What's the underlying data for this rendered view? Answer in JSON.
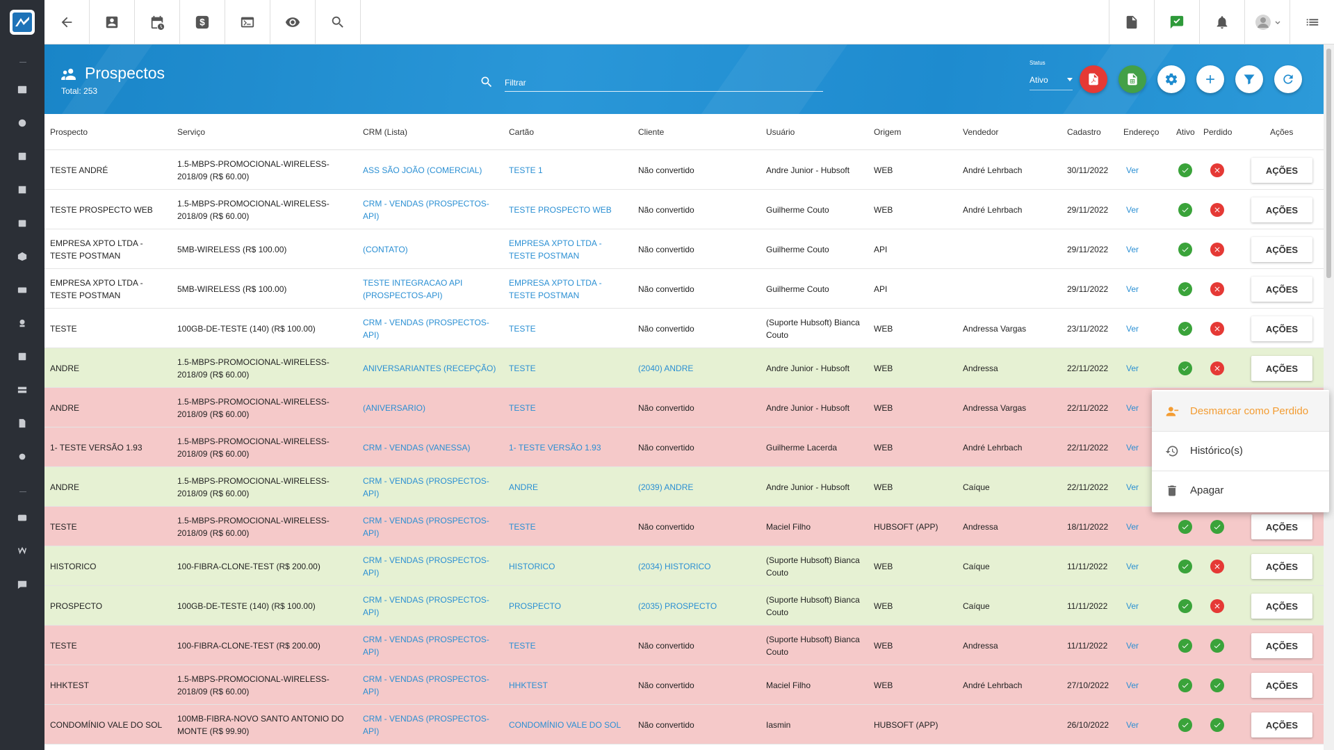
{
  "colors": {
    "header_blue": "#1e8bcf",
    "link": "#2a8fd3",
    "row_green": "#e6f1d3",
    "row_red": "#f5c9c9",
    "ok_green": "#3aa33a",
    "error_red": "#e53935",
    "menu_orange": "#f39c32",
    "pdf_red": "#e53935",
    "excel_green": "#43a047"
  },
  "topbar": {
    "left_icons": [
      "back-arrow-icon",
      "contact-card-icon",
      "calendar-clock-icon",
      "dollar-icon",
      "terminal-icon",
      "eye-icon",
      "search-icon"
    ],
    "right_icons": [
      "pdf-document-icon",
      "chat-check-icon",
      "bell-icon",
      "user-avatar-icon",
      "menu-list-icon"
    ]
  },
  "header": {
    "title": "Prospectos",
    "total": "Total: 253",
    "filter_placeholder": "Filtrar",
    "status_label": "Status",
    "status_value": "Ativo",
    "action_icons": [
      "pdf-export-icon",
      "excel-export-icon",
      "settings-icon",
      "add-icon",
      "filter-icon",
      "refresh-icon"
    ]
  },
  "table": {
    "columns": [
      "Prospecto",
      "Serviço",
      "CRM (Lista)",
      "Cartão",
      "Cliente",
      "Usuário",
      "Origem",
      "Vendedor",
      "Cadastro",
      "Endereço",
      "Ativo",
      "Perdido",
      "Ações"
    ],
    "rows": [
      {
        "prospecto": "TESTE ANDRÉ",
        "servico": "1.5-MBPS-PROMOCIONAL-WIRELESS-2018/09 (R$ 60.00)",
        "crm": "ASS SÃO JOÃO (COMERCIAL)",
        "cartao": "TESTE 1",
        "cliente": "Não convertido",
        "cliente_link": false,
        "usuario": "Andre Junior - Hubsoft",
        "origem": "WEB",
        "vendedor": "André Lehrbach",
        "cadastro": "30/11/2022",
        "endereco": "Ver",
        "ativo": true,
        "perdido": false,
        "acoes": "AÇÕES",
        "color": "white"
      },
      {
        "prospecto": "TESTE PROSPECTO WEB",
        "servico": "1.5-MBPS-PROMOCIONAL-WIRELESS-2018/09 (R$ 60.00)",
        "crm": "CRM - VENDAS (PROSPECTOS-API)",
        "cartao": "TESTE PROSPECTO WEB",
        "cliente": "Não convertido",
        "cliente_link": false,
        "usuario": "Guilherme Couto",
        "origem": "WEB",
        "vendedor": "André Lehrbach",
        "cadastro": "29/11/2022",
        "endereco": "Ver",
        "ativo": true,
        "perdido": false,
        "acoes": "AÇÕES",
        "color": "white"
      },
      {
        "prospecto": "EMPRESA XPTO LTDA - TESTE POSTMAN",
        "servico": "5MB-WIRELESS (R$ 100.00)",
        "crm": "(CONTATO)",
        "cartao": "EMPRESA XPTO LTDA - TESTE POSTMAN",
        "cliente": "Não convertido",
        "cliente_link": false,
        "usuario": "Guilherme Couto",
        "origem": "API",
        "vendedor": "",
        "cadastro": "29/11/2022",
        "endereco": "Ver",
        "ativo": true,
        "perdido": false,
        "acoes": "AÇÕES",
        "color": "white"
      },
      {
        "prospecto": "EMPRESA XPTO LTDA - TESTE POSTMAN",
        "servico": "5MB-WIRELESS (R$ 100.00)",
        "crm": "TESTE INTEGRACAO API (PROSPECTOS-API)",
        "cartao": "EMPRESA XPTO LTDA - TESTE POSTMAN",
        "cliente": "Não convertido",
        "cliente_link": false,
        "usuario": "Guilherme Couto",
        "origem": "API",
        "vendedor": "",
        "cadastro": "29/11/2022",
        "endereco": "Ver",
        "ativo": true,
        "perdido": false,
        "acoes": "AÇÕES",
        "color": "white"
      },
      {
        "prospecto": "TESTE",
        "servico": "100GB-DE-TESTE (140) (R$ 100.00)",
        "crm": "CRM - VENDAS (PROSPECTOS-API)",
        "cartao": "TESTE",
        "cliente": "Não convertido",
        "cliente_link": false,
        "usuario": "(Suporte Hubsoft) Bianca Couto",
        "origem": "WEB",
        "vendedor": "Andressa Vargas",
        "cadastro": "23/11/2022",
        "endereco": "Ver",
        "ativo": true,
        "perdido": false,
        "acoes": "AÇÕES",
        "color": "white"
      },
      {
        "prospecto": "ANDRE",
        "servico": "1.5-MBPS-PROMOCIONAL-WIRELESS-2018/09 (R$ 60.00)",
        "crm": "ANIVERSARIANTES (RECEPÇÃO)",
        "cartao": "TESTE",
        "cliente": "(2040) ANDRE",
        "cliente_link": true,
        "usuario": "Andre Junior - Hubsoft",
        "origem": "WEB",
        "vendedor": "Andressa",
        "cadastro": "22/11/2022",
        "endereco": "Ver",
        "ativo": true,
        "perdido": false,
        "acoes": "AÇÕES",
        "color": "green"
      },
      {
        "prospecto": "ANDRE",
        "servico": "1.5-MBPS-PROMOCIONAL-WIRELESS-2018/09 (R$ 60.00)",
        "crm": "(ANIVERSARIO)",
        "cartao": "TESTE",
        "cliente": "Não convertido",
        "cliente_link": false,
        "usuario": "Andre Junior - Hubsoft",
        "origem": "WEB",
        "vendedor": "Andressa Vargas",
        "cadastro": "22/11/2022",
        "endereco": "Ver",
        "ativo": null,
        "perdido": null,
        "acoes": "",
        "color": "red"
      },
      {
        "prospecto": "1- TESTE VERSÃO 1.93",
        "servico": "1.5-MBPS-PROMOCIONAL-WIRELESS-2018/09 (R$ 60.00)",
        "crm": "CRM - VENDAS (VANESSA)",
        "cartao": "1- TESTE VERSÃO 1.93",
        "cliente": "Não convertido",
        "cliente_link": false,
        "usuario": "Guilherme Lacerda",
        "origem": "WEB",
        "vendedor": "André Lehrbach",
        "cadastro": "22/11/2022",
        "endereco": "Ver",
        "ativo": null,
        "perdido": null,
        "acoes": "",
        "color": "red"
      },
      {
        "prospecto": "ANDRE",
        "servico": "1.5-MBPS-PROMOCIONAL-WIRELESS-2018/09 (R$ 60.00)",
        "crm": "CRM - VENDAS (PROSPECTOS-API)",
        "cartao": "ANDRE",
        "cliente": "(2039) ANDRE",
        "cliente_link": true,
        "usuario": "Andre Junior - Hubsoft",
        "origem": "WEB",
        "vendedor": "Caíque",
        "cadastro": "22/11/2022",
        "endereco": "Ver",
        "ativo": null,
        "perdido": null,
        "acoes": "",
        "color": "green"
      },
      {
        "prospecto": "TESTE",
        "servico": "1.5-MBPS-PROMOCIONAL-WIRELESS-2018/09 (R$ 60.00)",
        "crm": "CRM - VENDAS (PROSPECTOS-API)",
        "cartao": "TESTE",
        "cliente": "Não convertido",
        "cliente_link": false,
        "usuario": "Maciel Filho",
        "origem": "HUBSOFT (APP)",
        "vendedor": "Andressa",
        "cadastro": "18/11/2022",
        "endereco": "Ver",
        "ativo": true,
        "perdido": true,
        "acoes": "AÇÕES",
        "color": "red"
      },
      {
        "prospecto": "HISTORICO",
        "servico": "100-FIBRA-CLONE-TEST (R$ 200.00)",
        "crm": "CRM - VENDAS (PROSPECTOS-API)",
        "cartao": "HISTORICO",
        "cliente": "(2034) HISTORICO",
        "cliente_link": true,
        "usuario": "(Suporte Hubsoft) Bianca Couto",
        "origem": "WEB",
        "vendedor": "Caíque",
        "cadastro": "11/11/2022",
        "endereco": "Ver",
        "ativo": true,
        "perdido": false,
        "acoes": "AÇÕES",
        "color": "green"
      },
      {
        "prospecto": "PROSPECTO",
        "servico": "100GB-DE-TESTE (140) (R$ 100.00)",
        "crm": "CRM - VENDAS (PROSPECTOS-API)",
        "cartao": "PROSPECTO",
        "cliente": "(2035) PROSPECTO",
        "cliente_link": true,
        "usuario": "(Suporte Hubsoft) Bianca Couto",
        "origem": "WEB",
        "vendedor": "Caíque",
        "cadastro": "11/11/2022",
        "endereco": "Ver",
        "ativo": true,
        "perdido": false,
        "acoes": "AÇÕES",
        "color": "green"
      },
      {
        "prospecto": "TESTE",
        "servico": "100-FIBRA-CLONE-TEST (R$ 200.00)",
        "crm": "CRM - VENDAS (PROSPECTOS-API)",
        "cartao": "TESTE",
        "cliente": "Não convertido",
        "cliente_link": false,
        "usuario": "(Suporte Hubsoft) Bianca Couto",
        "origem": "WEB",
        "vendedor": "Andressa",
        "cadastro": "11/11/2022",
        "endereco": "Ver",
        "ativo": true,
        "perdido": true,
        "acoes": "AÇÕES",
        "color": "red"
      },
      {
        "prospecto": "HHKTEST",
        "servico": "1.5-MBPS-PROMOCIONAL-WIRELESS-2018/09 (R$ 60.00)",
        "crm": "CRM - VENDAS (PROSPECTOS-API)",
        "cartao": "HHKTEST",
        "cliente": "Não convertido",
        "cliente_link": false,
        "usuario": "Maciel Filho",
        "origem": "WEB",
        "vendedor": "André Lehrbach",
        "cadastro": "27/10/2022",
        "endereco": "Ver",
        "ativo": true,
        "perdido": true,
        "acoes": "AÇÕES",
        "color": "red"
      },
      {
        "prospecto": "CONDOMÍNIO VALE DO SOL",
        "servico": "100MB-FIBRA-NOVO SANTO ANTONIO DO MONTE (R$ 99.90)",
        "crm": "CRM - VENDAS (PROSPECTOS-API)",
        "cartao": "CONDOMÍNIO VALE DO SOL",
        "cliente": "Não convertido",
        "cliente_link": false,
        "usuario": "Iasmin",
        "origem": "HUBSOFT (APP)",
        "vendedor": "",
        "cadastro": "26/10/2022",
        "endereco": "Ver",
        "ativo": true,
        "perdido": true,
        "acoes": "AÇÕES",
        "color": "red"
      }
    ]
  },
  "context_menu": {
    "items": [
      {
        "label": "Desmarcar como Perdido",
        "icon": "user-remove-icon",
        "highlight": true
      },
      {
        "label": "Histórico(s)",
        "icon": "history-icon",
        "highlight": false
      },
      {
        "label": "Apagar",
        "icon": "trash-icon",
        "highlight": false
      }
    ]
  }
}
